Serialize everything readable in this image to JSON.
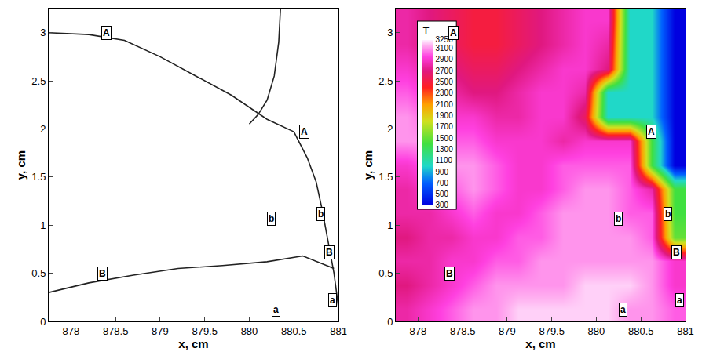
{
  "chart_data": [
    {
      "type": "line",
      "xlabel": "x, cm",
      "ylabel": "y, cm",
      "xlim": [
        877.75,
        881
      ],
      "ylim": [
        0,
        3.25
      ],
      "xticks": [
        878,
        878.5,
        879,
        879.5,
        880,
        880.5,
        881
      ],
      "yticks": [
        0,
        0.5,
        1,
        1.5,
        2,
        2.5,
        3
      ],
      "series": [
        {
          "color": "#222222",
          "x": [
            877.75,
            878.2,
            878.6,
            879.0,
            879.4,
            879.8,
            880.2,
            880.5
          ],
          "y": [
            3.0,
            2.98,
            2.92,
            2.75,
            2.55,
            2.35,
            2.1,
            1.97
          ]
        },
        {
          "color": "#222222",
          "x": [
            880.35,
            880.33,
            880.28,
            880.2,
            880.1,
            880.0
          ],
          "y": [
            3.25,
            2.9,
            2.55,
            2.3,
            2.15,
            2.05
          ]
        },
        {
          "color": "#222222",
          "x": [
            880.5,
            880.65,
            880.75,
            880.82,
            880.88,
            880.95,
            881.0
          ],
          "y": [
            1.97,
            1.7,
            1.45,
            1.15,
            0.85,
            0.5,
            0.15
          ]
        },
        {
          "color": "#222222",
          "x": [
            877.75,
            878.2,
            878.7,
            879.2,
            879.7,
            880.2,
            880.6,
            880.95
          ],
          "y": [
            0.3,
            0.4,
            0.48,
            0.55,
            0.58,
            0.62,
            0.68,
            0.55
          ]
        }
      ],
      "annotations": [
        {
          "text": "A",
          "x": 878.4,
          "y": 3.0
        },
        {
          "text": "A",
          "x": 880.62,
          "y": 1.97
        },
        {
          "text": "B",
          "x": 878.35,
          "y": 0.5
        },
        {
          "text": "B",
          "x": 880.9,
          "y": 0.72
        },
        {
          "text": "b",
          "x": 880.25,
          "y": 1.07
        },
        {
          "text": "b",
          "x": 880.8,
          "y": 1.12
        },
        {
          "text": "a",
          "x": 880.3,
          "y": 0.12
        },
        {
          "text": "a",
          "x": 880.93,
          "y": 0.22
        }
      ]
    },
    {
      "type": "heatmap",
      "xlabel": "x, cm",
      "ylabel": "y, cm",
      "xlim": [
        877.75,
        881
      ],
      "ylim": [
        0,
        3.25
      ],
      "xticks": [
        878,
        878.5,
        879,
        879.5,
        880,
        880.5,
        {
          "value": 881,
          "label": "881"
        }
      ],
      "yticks": [
        0,
        0.5,
        1,
        1.5,
        2,
        2.5,
        3
      ],
      "x": [
        877.875,
        878.125,
        878.375,
        878.625,
        878.875,
        879.125,
        879.375,
        879.625,
        879.875,
        880.125,
        880.375,
        880.625,
        880.875
      ],
      "y": [
        0.125,
        0.375,
        0.625,
        0.875,
        1.125,
        1.375,
        1.625,
        1.875,
        2.125,
        2.375,
        2.625,
        2.875,
        3.125
      ],
      "cells": [
        [
          2800,
          2900,
          3000,
          3100,
          3100,
          3200,
          3200,
          3200,
          3200,
          3200,
          3100,
          3100,
          3000
        ],
        [
          2700,
          2800,
          2900,
          3000,
          3100,
          3100,
          3100,
          3100,
          3200,
          3200,
          3200,
          3100,
          2900
        ],
        [
          2800,
          2800,
          2900,
          2900,
          3000,
          3000,
          3100,
          3100,
          3100,
          3100,
          3100,
          3100,
          2900
        ],
        [
          2700,
          2800,
          2800,
          2900,
          2900,
          3000,
          3000,
          3100,
          3100,
          3100,
          3100,
          3000,
          1500
        ],
        [
          2800,
          2800,
          2900,
          3000,
          2900,
          2900,
          3000,
          3100,
          3100,
          3100,
          3000,
          3000,
          1400
        ],
        [
          2800,
          2900,
          3000,
          3100,
          3000,
          2900,
          2900,
          3000,
          3100,
          3100,
          3000,
          2800,
          1400
        ],
        [
          2900,
          3000,
          3100,
          3100,
          3000,
          2900,
          2900,
          3000,
          3000,
          3000,
          3000,
          1400,
          300
        ],
        [
          3100,
          3100,
          3000,
          3000,
          2900,
          2900,
          2900,
          2800,
          2900,
          2900,
          2900,
          1400,
          300
        ],
        [
          3100,
          3000,
          2900,
          2900,
          2800,
          2800,
          2900,
          2900,
          2600,
          1000,
          1000,
          1000,
          300
        ],
        [
          3000,
          2900,
          2800,
          2700,
          2700,
          2800,
          2900,
          2900,
          2800,
          1000,
          1000,
          1000,
          300
        ],
        [
          2900,
          2800,
          2700,
          2600,
          2600,
          2700,
          2800,
          2900,
          2900,
          2700,
          1000,
          1000,
          300
        ],
        [
          2800,
          2700,
          2600,
          2500,
          2500,
          2600,
          2700,
          2800,
          2900,
          2800,
          1000,
          1000,
          300
        ],
        [
          2800,
          2700,
          2600,
          2500,
          2500,
          2600,
          2700,
          2800,
          2900,
          2900,
          1000,
          1000,
          300
        ]
      ],
      "colorbar": {
        "title": "T",
        "range": [
          300,
          3250
        ],
        "ticks": [
          3250,
          3100,
          2900,
          2700,
          2500,
          2300,
          2100,
          1900,
          1700,
          1500,
          1300,
          1100,
          900,
          700,
          500,
          300
        ]
      },
      "annotations": [
        {
          "text": "A",
          "x": 878.4,
          "y": 3.0
        },
        {
          "text": "A",
          "x": 880.62,
          "y": 1.97
        },
        {
          "text": "B",
          "x": 878.35,
          "y": 0.5
        },
        {
          "text": "B",
          "x": 880.9,
          "y": 0.72
        },
        {
          "text": "b",
          "x": 880.25,
          "y": 1.07
        },
        {
          "text": "b",
          "x": 880.8,
          "y": 1.12
        },
        {
          "text": "a",
          "x": 880.3,
          "y": 0.12
        },
        {
          "text": "a",
          "x": 880.93,
          "y": 0.22
        }
      ]
    }
  ]
}
